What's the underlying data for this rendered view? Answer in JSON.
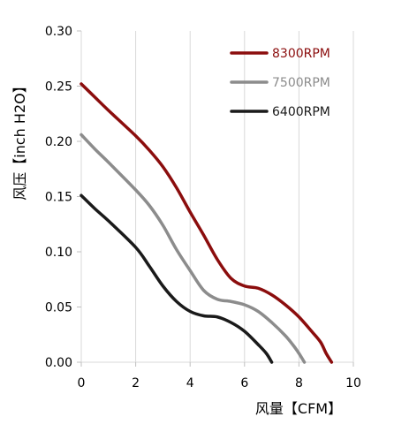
{
  "chart_data": {
    "type": "line",
    "title": "",
    "xlabel": "风量【CFM】",
    "ylabel": "风压【inch H2O】",
    "xlim": [
      0,
      10
    ],
    "ylim": [
      0,
      0.3
    ],
    "x_ticks": [
      0,
      2,
      4,
      6,
      8,
      10
    ],
    "x_tick_labels": [
      "0",
      "2",
      "4",
      "6",
      "8",
      "10"
    ],
    "y_ticks": [
      0,
      0.05,
      0.1,
      0.15,
      0.2,
      0.25,
      0.3
    ],
    "y_tick_labels": [
      "0.00",
      "0.05",
      "0.10",
      "0.15",
      "0.20",
      "0.25",
      "0.30"
    ],
    "grid": "vertical",
    "legend_position": "top-right",
    "series": [
      {
        "name": "8300RPM",
        "color": "#8b0d0d",
        "x": [
          0,
          0.5,
          1,
          2,
          2.5,
          3,
          3.5,
          4,
          4.5,
          5,
          5.5,
          6,
          6.5,
          7,
          7.5,
          8,
          8.5,
          8.8,
          9.0,
          9.2
        ],
        "y": [
          0.252,
          0.24,
          0.228,
          0.205,
          0.192,
          0.177,
          0.158,
          0.136,
          0.115,
          0.093,
          0.076,
          0.069,
          0.067,
          0.061,
          0.052,
          0.041,
          0.027,
          0.018,
          0.008,
          0.0
        ]
      },
      {
        "name": "7500RPM",
        "color": "#8c8c8c",
        "x": [
          0,
          0.5,
          1,
          2,
          2.5,
          3,
          3.5,
          4,
          4.5,
          5,
          5.5,
          6,
          6.5,
          7,
          7.5,
          7.8,
          8.0,
          8.2
        ],
        "y": [
          0.206,
          0.193,
          0.181,
          0.156,
          0.142,
          0.124,
          0.102,
          0.083,
          0.065,
          0.057,
          0.055,
          0.052,
          0.046,
          0.036,
          0.024,
          0.015,
          0.008,
          0.0
        ]
      },
      {
        "name": "6400RPM",
        "color": "#1a1a1a",
        "x": [
          0,
          0.5,
          1,
          2,
          2.5,
          3,
          3.5,
          4,
          4.5,
          5,
          5.5,
          6,
          6.5,
          6.8,
          7.0
        ],
        "y": [
          0.151,
          0.139,
          0.128,
          0.104,
          0.087,
          0.069,
          0.055,
          0.046,
          0.042,
          0.041,
          0.036,
          0.028,
          0.016,
          0.008,
          0.0
        ]
      }
    ]
  }
}
